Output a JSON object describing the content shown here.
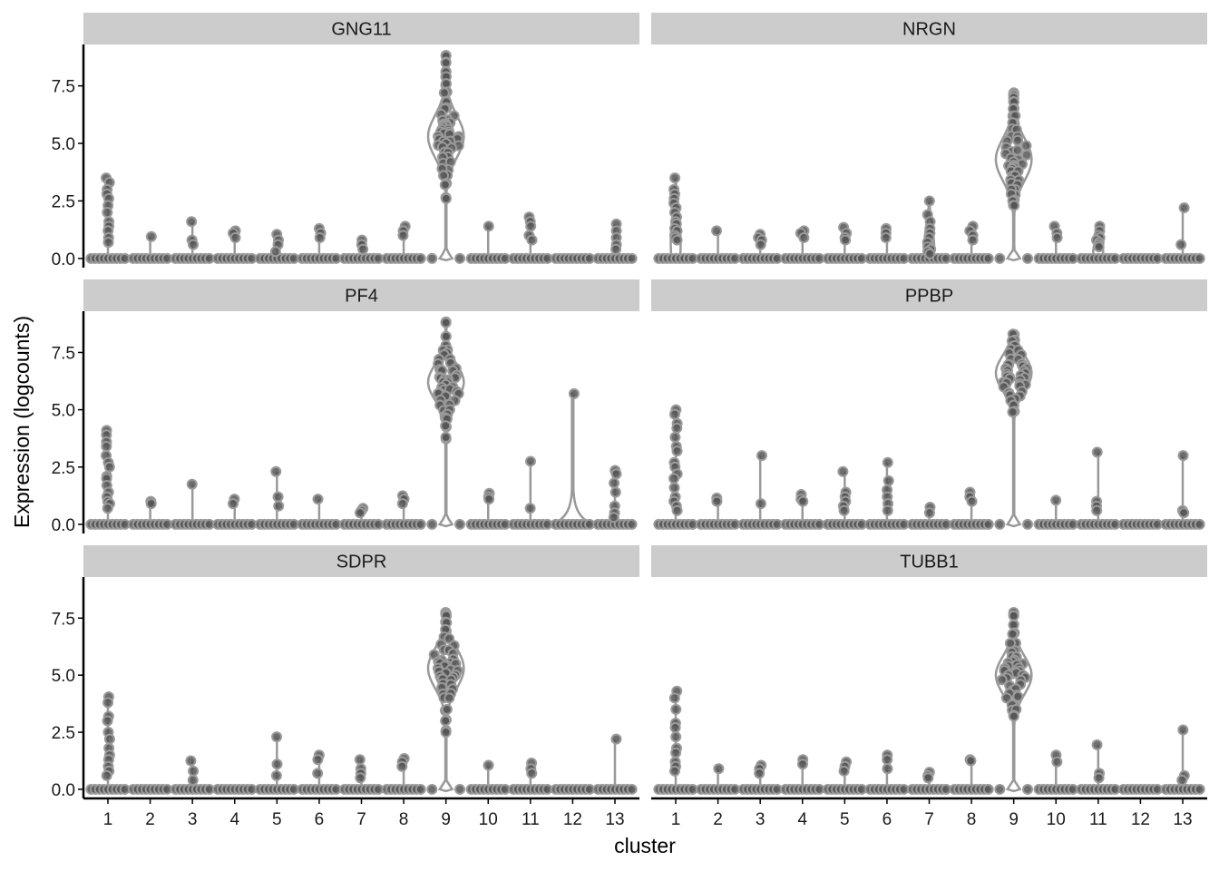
{
  "chart_data": {
    "type": "violin",
    "xlabel": "cluster",
    "ylabel": "Expression (logcounts)",
    "ylim": [
      -0.4,
      9.3
    ],
    "y_ticks": [
      0.0,
      2.5,
      5.0,
      7.5
    ],
    "y_tick_labels": [
      "0.0",
      "2.5",
      "5.0",
      "7.5"
    ],
    "categories": [
      "1",
      "2",
      "3",
      "4",
      "5",
      "6",
      "7",
      "8",
      "9",
      "10",
      "11",
      "12",
      "13"
    ],
    "colors": {
      "strip_bg": "#cccccc",
      "violin": "#999999",
      "point_fill": "#555555",
      "point_stroke": "#9a9a9a",
      "axis": "#000000"
    },
    "panels": [
      {
        "gene": "GNG11",
        "clusters": [
          {
            "cluster": "1",
            "max": 3.5,
            "points": [
              3.5,
              3.3,
              3.0,
              2.8,
              2.6,
              2.3,
              2.0,
              1.6,
              1.4,
              1.2,
              0.9,
              0.7
            ]
          },
          {
            "cluster": "2",
            "max": 0.95,
            "points": [
              0.95
            ]
          },
          {
            "cluster": "3",
            "max": 1.6,
            "points": [
              1.6,
              0.8,
              0.6
            ]
          },
          {
            "cluster": "4",
            "max": 1.2,
            "points": [
              1.2,
              1.1,
              0.9
            ]
          },
          {
            "cluster": "5",
            "max": 1.05,
            "points": [
              1.05,
              0.8,
              0.6,
              0.3
            ]
          },
          {
            "cluster": "6",
            "max": 1.3,
            "points": [
              1.3,
              1.1,
              0.9
            ]
          },
          {
            "cluster": "7",
            "max": 0.8,
            "points": [
              0.8,
              0.6,
              0.4
            ]
          },
          {
            "cluster": "8",
            "max": 1.4,
            "points": [
              1.4,
              1.2,
              1.0
            ]
          },
          {
            "cluster": "9",
            "max": 8.8,
            "center": 5.3,
            "spread": 1.0,
            "zero_pinch": true,
            "points": [
              8.8,
              8.5,
              8.1,
              7.9,
              7.6,
              7.2,
              6.8,
              6.5,
              6.2,
              6.0,
              5.9,
              5.8,
              5.7,
              5.6,
              5.5,
              5.4,
              5.3,
              5.2,
              5.1,
              5.0,
              4.9,
              4.8,
              4.6,
              4.4,
              4.2,
              3.9,
              3.6,
              3.2,
              2.6
            ]
          },
          {
            "cluster": "10",
            "max": 1.4,
            "points": [
              1.4
            ]
          },
          {
            "cluster": "11",
            "max": 1.8,
            "points": [
              1.8,
              1.6,
              1.4,
              1.0,
              0.8
            ]
          },
          {
            "cluster": "12",
            "max": 0,
            "points": []
          },
          {
            "cluster": "13",
            "max": 1.5,
            "points": [
              1.5,
              1.2,
              0.9,
              0.6,
              0.4
            ]
          }
        ]
      },
      {
        "gene": "NRGN",
        "clusters": [
          {
            "cluster": "1",
            "max": 3.5,
            "bulge": true,
            "points": [
              3.5,
              3.0,
              2.8,
              2.6,
              2.4,
              2.2,
              2.0,
              1.8,
              1.6,
              1.5,
              1.3,
              1.2,
              1.0,
              0.9,
              0.8
            ]
          },
          {
            "cluster": "2",
            "max": 1.2,
            "points": [
              1.2
            ]
          },
          {
            "cluster": "3",
            "max": 1.05,
            "points": [
              1.05,
              0.9,
              0.8,
              0.6
            ]
          },
          {
            "cluster": "4",
            "max": 1.2,
            "points": [
              1.2,
              1.1,
              0.9
            ]
          },
          {
            "cluster": "5",
            "max": 1.35,
            "points": [
              1.35,
              1.1,
              0.9,
              0.8
            ]
          },
          {
            "cluster": "6",
            "max": 1.3,
            "points": [
              1.3,
              1.1,
              0.9
            ]
          },
          {
            "cluster": "7",
            "max": 2.5,
            "bulge": true,
            "points": [
              2.5,
              1.9,
              1.6,
              1.3,
              1.1,
              0.9,
              0.7,
              0.5,
              0.4,
              0.3,
              0.2
            ]
          },
          {
            "cluster": "8",
            "max": 1.4,
            "points": [
              1.4,
              1.2,
              1.0,
              0.8
            ]
          },
          {
            "cluster": "9",
            "max": 7.2,
            "center": 4.3,
            "spread": 1.0,
            "zero_pinch": true,
            "points": [
              7.2,
              7.1,
              7.0,
              6.8,
              6.5,
              6.2,
              5.9,
              5.6,
              5.3,
              5.1,
              4.9,
              4.7,
              4.5,
              4.3,
              4.2,
              4.1,
              4.0,
              3.9,
              3.8,
              3.6,
              3.4,
              3.2,
              3.0,
              2.8,
              2.5,
              2.3
            ]
          },
          {
            "cluster": "10",
            "max": 1.4,
            "points": [
              1.4,
              1.1,
              0.9
            ]
          },
          {
            "cluster": "11",
            "max": 1.4,
            "bulge": true,
            "points": [
              1.4,
              1.2,
              1.0,
              0.9,
              0.8,
              0.7,
              0.6,
              0.5
            ]
          },
          {
            "cluster": "12",
            "max": 0,
            "points": []
          },
          {
            "cluster": "13",
            "max": 2.2,
            "points": [
              2.2,
              0.6
            ]
          }
        ]
      },
      {
        "gene": "PF4",
        "clusters": [
          {
            "cluster": "1",
            "max": 4.1,
            "points": [
              4.1,
              3.9,
              3.6,
              3.4,
              3.0,
              2.7,
              2.5,
              2.1,
              2.0,
              1.7,
              1.4,
              1.2,
              1.0,
              0.9,
              0.7
            ]
          },
          {
            "cluster": "2",
            "max": 1.0,
            "points": [
              1.0,
              0.9
            ]
          },
          {
            "cluster": "3",
            "max": 1.75,
            "points": [
              1.75
            ]
          },
          {
            "cluster": "4",
            "max": 1.1,
            "points": [
              1.1,
              0.9
            ]
          },
          {
            "cluster": "5",
            "max": 2.3,
            "points": [
              2.3,
              1.2,
              0.8
            ]
          },
          {
            "cluster": "6",
            "max": 1.1,
            "points": [
              1.1
            ]
          },
          {
            "cluster": "7",
            "max": 0.7,
            "points": [
              0.7,
              0.6,
              0.5
            ]
          },
          {
            "cluster": "8",
            "max": 1.25,
            "points": [
              1.25,
              1.1,
              0.9
            ]
          },
          {
            "cluster": "9",
            "max": 8.8,
            "center": 6.2,
            "spread": 0.85,
            "zero_pinch": true,
            "points": [
              8.8,
              8.2,
              7.8,
              7.6,
              7.4,
              7.2,
              7.0,
              6.8,
              6.7,
              6.5,
              6.4,
              6.3,
              6.2,
              6.1,
              6.0,
              5.9,
              5.8,
              5.7,
              5.6,
              5.4,
              5.2,
              5.0,
              4.8,
              4.6,
              4.3,
              3.8
            ]
          },
          {
            "cluster": "10",
            "max": 1.35,
            "points": [
              1.35,
              1.2,
              1.1
            ]
          },
          {
            "cluster": "11",
            "max": 2.75,
            "points": [
              2.75,
              0.7
            ]
          },
          {
            "cluster": "12",
            "max": 5.7,
            "wide_zero": true,
            "points": [
              5.7
            ]
          },
          {
            "cluster": "13",
            "max": 2.35,
            "points": [
              2.35,
              2.2,
              1.8,
              1.4,
              0.8,
              0.5,
              0.3
            ]
          }
        ]
      },
      {
        "gene": "PPBP",
        "clusters": [
          {
            "cluster": "1",
            "max": 5.0,
            "points": [
              5.0,
              4.8,
              4.4,
              4.2,
              3.8,
              3.4,
              3.2,
              2.7,
              2.5,
              2.2,
              2.0,
              1.6,
              1.2,
              1.0,
              0.8,
              0.6
            ]
          },
          {
            "cluster": "2",
            "max": 1.15,
            "points": [
              1.15,
              1.0
            ]
          },
          {
            "cluster": "3",
            "max": 3.0,
            "points": [
              3.0,
              0.9
            ]
          },
          {
            "cluster": "4",
            "max": 1.3,
            "points": [
              1.3,
              1.1,
              1.0
            ]
          },
          {
            "cluster": "5",
            "max": 2.3,
            "points": [
              2.3,
              1.4,
              1.2,
              1.0,
              0.8,
              0.6
            ]
          },
          {
            "cluster": "6",
            "max": 2.7,
            "points": [
              2.7,
              1.9,
              1.5,
              1.2,
              0.9,
              0.6
            ]
          },
          {
            "cluster": "7",
            "max": 0.75,
            "points": [
              0.75,
              0.5
            ]
          },
          {
            "cluster": "8",
            "max": 1.4,
            "points": [
              1.4,
              1.2,
              1.0
            ]
          },
          {
            "cluster": "9",
            "max": 8.3,
            "center": 6.6,
            "spread": 0.85,
            "zero_pinch": true,
            "points": [
              8.3,
              8.0,
              7.8,
              7.6,
              7.4,
              7.2,
              7.0,
              6.9,
              6.8,
              6.7,
              6.6,
              6.5,
              6.4,
              6.3,
              6.2,
              6.1,
              6.0,
              5.8,
              5.6,
              5.4,
              5.2,
              4.9
            ]
          },
          {
            "cluster": "10",
            "max": 1.05,
            "points": [
              1.05
            ]
          },
          {
            "cluster": "11",
            "max": 3.15,
            "points": [
              3.15,
              1.0,
              0.8,
              0.6
            ]
          },
          {
            "cluster": "12",
            "max": 0,
            "points": []
          },
          {
            "cluster": "13",
            "max": 3.0,
            "points": [
              3.0,
              0.6,
              0.5
            ]
          }
        ]
      },
      {
        "gene": "SDPR",
        "clusters": [
          {
            "cluster": "1",
            "max": 4.05,
            "points": [
              4.05,
              3.8,
              3.2,
              3.0,
              2.5,
              2.2,
              1.8,
              1.5,
              1.3,
              1.0,
              0.8,
              0.6
            ]
          },
          {
            "cluster": "2",
            "max": 0,
            "points": []
          },
          {
            "cluster": "3",
            "max": 1.25,
            "points": [
              1.25,
              0.8,
              0.4
            ]
          },
          {
            "cluster": "4",
            "max": 0,
            "points": []
          },
          {
            "cluster": "5",
            "max": 2.3,
            "points": [
              2.3,
              1.1,
              0.6
            ]
          },
          {
            "cluster": "6",
            "max": 1.5,
            "points": [
              1.5,
              1.3,
              0.7
            ]
          },
          {
            "cluster": "7",
            "max": 1.3,
            "points": [
              1.3,
              0.9,
              0.7,
              0.5
            ]
          },
          {
            "cluster": "8",
            "max": 1.35,
            "points": [
              1.35,
              1.2,
              1.0
            ]
          },
          {
            "cluster": "9",
            "max": 7.75,
            "center": 5.3,
            "spread": 0.95,
            "zero_pinch": true,
            "points": [
              7.75,
              7.6,
              7.3,
              7.0,
              6.6,
              6.3,
              6.1,
              5.9,
              5.7,
              5.6,
              5.5,
              5.4,
              5.3,
              5.2,
              5.1,
              5.0,
              4.9,
              4.8,
              4.6,
              4.4,
              4.2,
              4.0,
              3.5,
              3.0,
              2.5
            ]
          },
          {
            "cluster": "10",
            "max": 1.05,
            "points": [
              1.05
            ]
          },
          {
            "cluster": "11",
            "max": 1.15,
            "points": [
              1.15,
              0.9,
              0.7
            ]
          },
          {
            "cluster": "12",
            "max": 0,
            "points": []
          },
          {
            "cluster": "13",
            "max": 2.2,
            "points": [
              2.2
            ]
          }
        ]
      },
      {
        "gene": "TUBB1",
        "clusters": [
          {
            "cluster": "1",
            "max": 4.3,
            "points": [
              4.3,
              4.0,
              3.5,
              2.9,
              2.7,
              2.3,
              1.8,
              1.6,
              1.2,
              1.0,
              0.8
            ]
          },
          {
            "cluster": "2",
            "max": 0.9,
            "points": [
              0.9
            ]
          },
          {
            "cluster": "3",
            "max": 1.05,
            "points": [
              1.05,
              0.9,
              0.7
            ]
          },
          {
            "cluster": "4",
            "max": 1.3,
            "points": [
              1.3,
              1.1
            ]
          },
          {
            "cluster": "5",
            "max": 1.2,
            "points": [
              1.2,
              1.0,
              0.8
            ]
          },
          {
            "cluster": "6",
            "max": 1.5,
            "points": [
              1.5,
              1.3,
              0.9
            ]
          },
          {
            "cluster": "7",
            "max": 0.75,
            "points": [
              0.75,
              0.6,
              0.5
            ]
          },
          {
            "cluster": "8",
            "max": 1.3,
            "points": [
              1.3,
              1.25
            ]
          },
          {
            "cluster": "9",
            "max": 7.75,
            "center": 5.0,
            "spread": 0.9,
            "zero_pinch": true,
            "points": [
              7.75,
              7.6,
              7.2,
              6.8,
              6.4,
              6.0,
              5.8,
              5.6,
              5.5,
              5.4,
              5.3,
              5.2,
              5.1,
              5.0,
              4.9,
              4.8,
              4.6,
              4.4,
              4.2,
              4.0,
              3.7,
              3.5,
              3.2
            ]
          },
          {
            "cluster": "10",
            "max": 1.5,
            "points": [
              1.5,
              1.2
            ]
          },
          {
            "cluster": "11",
            "max": 1.95,
            "points": [
              1.95,
              0.7,
              0.5
            ]
          },
          {
            "cluster": "12",
            "max": 0,
            "points": []
          },
          {
            "cluster": "13",
            "max": 2.6,
            "points": [
              2.6,
              0.6,
              0.4
            ]
          }
        ]
      }
    ]
  }
}
